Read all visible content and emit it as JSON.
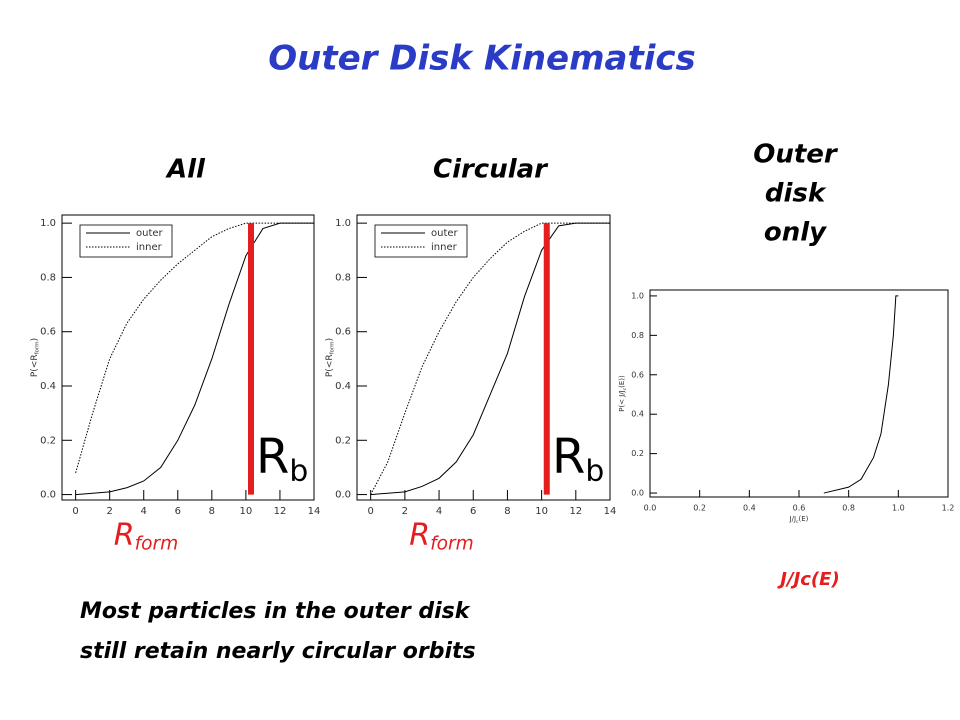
{
  "title": "Outer Disk Kinematics",
  "caption": [
    "Most particles in the outer disk",
    "still retain nearly circular orbits"
  ],
  "chart_data": [
    {
      "type": "line",
      "title_lines": [
        "All"
      ],
      "xlabel": {
        "base": "R",
        "sub": "form"
      },
      "ylabel": {
        "base": "P(<R",
        "sub": "form",
        "end": ")"
      },
      "xlim": [
        -0.8,
        14
      ],
      "ylim": [
        -0.02,
        1.03
      ],
      "xticks": [
        0,
        2,
        4,
        6,
        8,
        10,
        12,
        14
      ],
      "yticks": [
        {
          "value": 0,
          "label": "0.0"
        },
        {
          "value": 0.2,
          "label": "0.2"
        },
        {
          "value": 0.4,
          "label": "0.4"
        },
        {
          "value": 0.6,
          "label": "0.6"
        },
        {
          "value": 0.8,
          "label": "0.8"
        },
        {
          "value": 1,
          "label": "1.0"
        }
      ],
      "x": [
        0,
        1,
        2,
        3,
        4,
        5,
        6,
        7,
        8,
        9,
        10,
        11,
        12,
        14
      ],
      "series": [
        {
          "name": "outer",
          "color": "#000000",
          "dash": false,
          "values": [
            0,
            0.005,
            0.01,
            0.025,
            0.05,
            0.1,
            0.2,
            0.33,
            0.5,
            0.7,
            0.88,
            0.98,
            1.0,
            1.0
          ]
        },
        {
          "name": "inner",
          "color": "#000000",
          "dash": true,
          "values": [
            0.08,
            0.3,
            0.5,
            0.63,
            0.72,
            0.79,
            0.85,
            0.9,
            0.95,
            0.98,
            1.0,
            1.0,
            1.0,
            1.0
          ]
        }
      ],
      "legend": "upper left",
      "vline": {
        "x": 10.3,
        "color": "#e41e1e"
      },
      "annotation": {
        "base": "R",
        "sub": "b"
      }
    },
    {
      "type": "line",
      "title_lines": [
        "Circular"
      ],
      "xlabel": {
        "base": "R",
        "sub": "form"
      },
      "ylabel": {
        "base": "P(<R",
        "sub": "form",
        "end": ")"
      },
      "xlim": [
        -0.8,
        14
      ],
      "ylim": [
        -0.02,
        1.03
      ],
      "xticks": [
        0,
        2,
        4,
        6,
        8,
        10,
        12,
        14
      ],
      "yticks": [
        {
          "value": 0,
          "label": "0.0"
        },
        {
          "value": 0.2,
          "label": "0.2"
        },
        {
          "value": 0.4,
          "label": "0.4"
        },
        {
          "value": 0.6,
          "label": "0.6"
        },
        {
          "value": 0.8,
          "label": "0.8"
        },
        {
          "value": 1,
          "label": "1.0"
        }
      ],
      "x": [
        0,
        1,
        2,
        3,
        4,
        5,
        6,
        7,
        8,
        9,
        10,
        11,
        12,
        14
      ],
      "series": [
        {
          "name": "outer",
          "color": "#000000",
          "dash": false,
          "values": [
            0,
            0.005,
            0.01,
            0.03,
            0.06,
            0.12,
            0.22,
            0.37,
            0.52,
            0.73,
            0.9,
            0.99,
            1.0,
            1.0
          ]
        },
        {
          "name": "inner",
          "color": "#000000",
          "dash": true,
          "values": [
            0,
            0.12,
            0.3,
            0.47,
            0.6,
            0.71,
            0.8,
            0.87,
            0.93,
            0.97,
            1.0,
            1.0,
            1.0,
            1.0
          ]
        }
      ],
      "legend": "upper left",
      "vline": {
        "x": 10.3,
        "color": "#e41e1e"
      },
      "annotation": {
        "base": "R",
        "sub": "b"
      }
    },
    {
      "type": "line",
      "title_lines": [
        "Outer",
        "disk",
        "only"
      ],
      "xlabel": {
        "base": "J/J",
        "sub": "c",
        "end": "(E)"
      },
      "ylabel": {
        "base": "P(< J/J",
        "sub": "c",
        "end": "(E))"
      },
      "outer_xlabel": "J/Jc(E)",
      "xlim": [
        0,
        1.2
      ],
      "ylim": [
        -0.02,
        1.03
      ],
      "xticks": [
        {
          "value": 0,
          "label": "0.0"
        },
        {
          "value": 0.2,
          "label": "0.2"
        },
        {
          "value": 0.4,
          "label": "0.4"
        },
        {
          "value": 0.6,
          "label": "0.6"
        },
        {
          "value": 0.8,
          "label": "0.8"
        },
        {
          "value": 1,
          "label": "1.0"
        },
        {
          "value": 1.2,
          "label": "1.2"
        }
      ],
      "yticks": [
        {
          "value": 0,
          "label": "0.0"
        },
        {
          "value": 0.2,
          "label": "0.2"
        },
        {
          "value": 0.4,
          "label": "0.4"
        },
        {
          "value": 0.6,
          "label": "0.6"
        },
        {
          "value": 0.8,
          "label": "0.8"
        },
        {
          "value": 1,
          "label": "1.0"
        }
      ],
      "x": [
        0.7,
        0.8,
        0.85,
        0.9,
        0.93,
        0.96,
        0.98,
        0.99,
        1.0
      ],
      "series": [
        {
          "name": null,
          "color": "#000000",
          "dash": false,
          "values": [
            0,
            0.03,
            0.07,
            0.18,
            0.3,
            0.55,
            0.8,
            1.0,
            1.0
          ]
        }
      ]
    }
  ]
}
